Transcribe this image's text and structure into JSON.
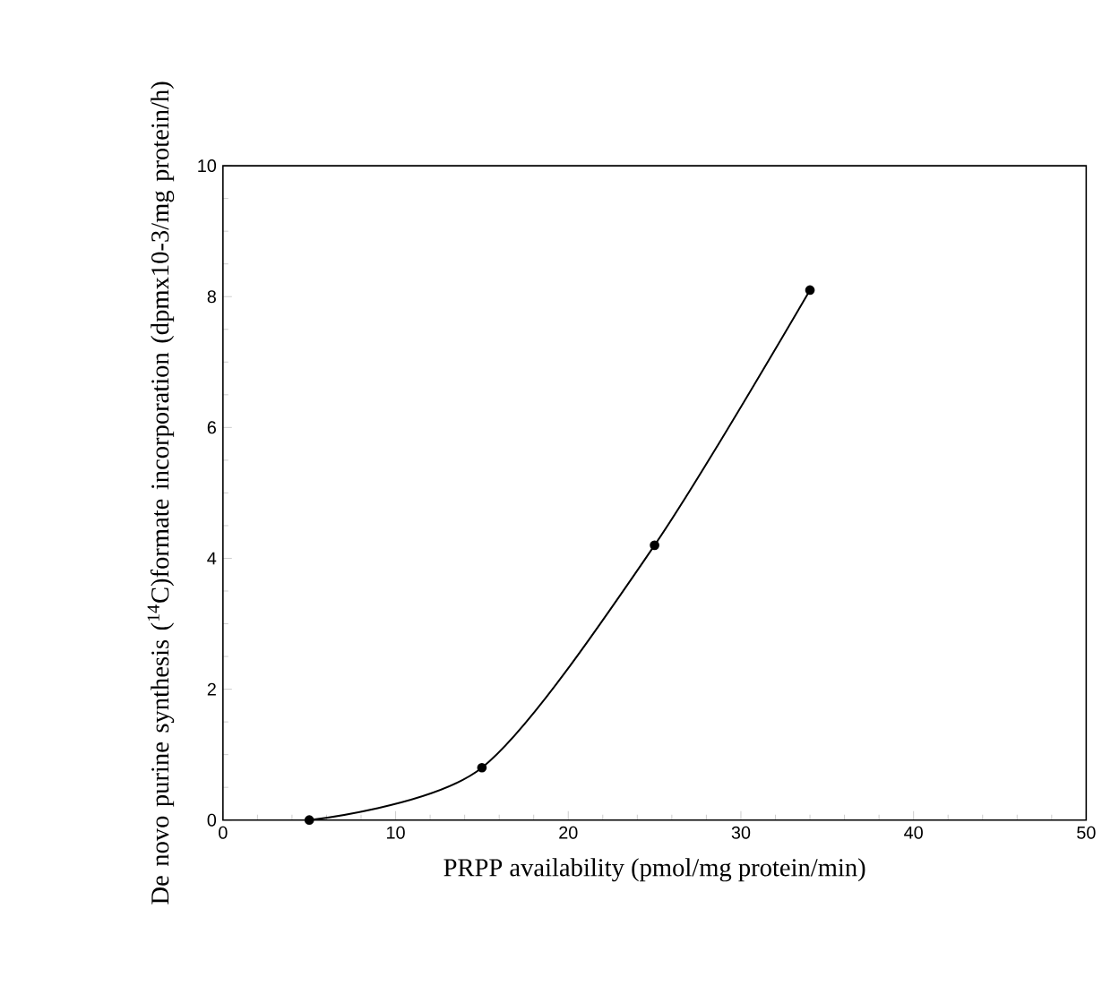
{
  "chart_data": {
    "type": "line",
    "xlabel": "PRPP availability (pmol/mg protein/min)",
    "ylabel": "De novo purine synthesis ($^{14}$C)formate incorporation (dpmx10-3/mg protein/h)",
    "x": [
      5,
      15,
      25,
      34
    ],
    "series": [
      {
        "color": "#000000",
        "values": [
          0,
          0.8,
          4.2,
          8.1
        ]
      }
    ],
    "xlim": [
      0,
      50
    ],
    "ylim": [
      0,
      10
    ],
    "xticks": [
      0,
      10,
      20,
      30,
      40,
      50
    ],
    "yticks": [
      0,
      2,
      4,
      6,
      8,
      10
    ],
    "marker": "circle",
    "line_style": "solid",
    "grid": false
  }
}
